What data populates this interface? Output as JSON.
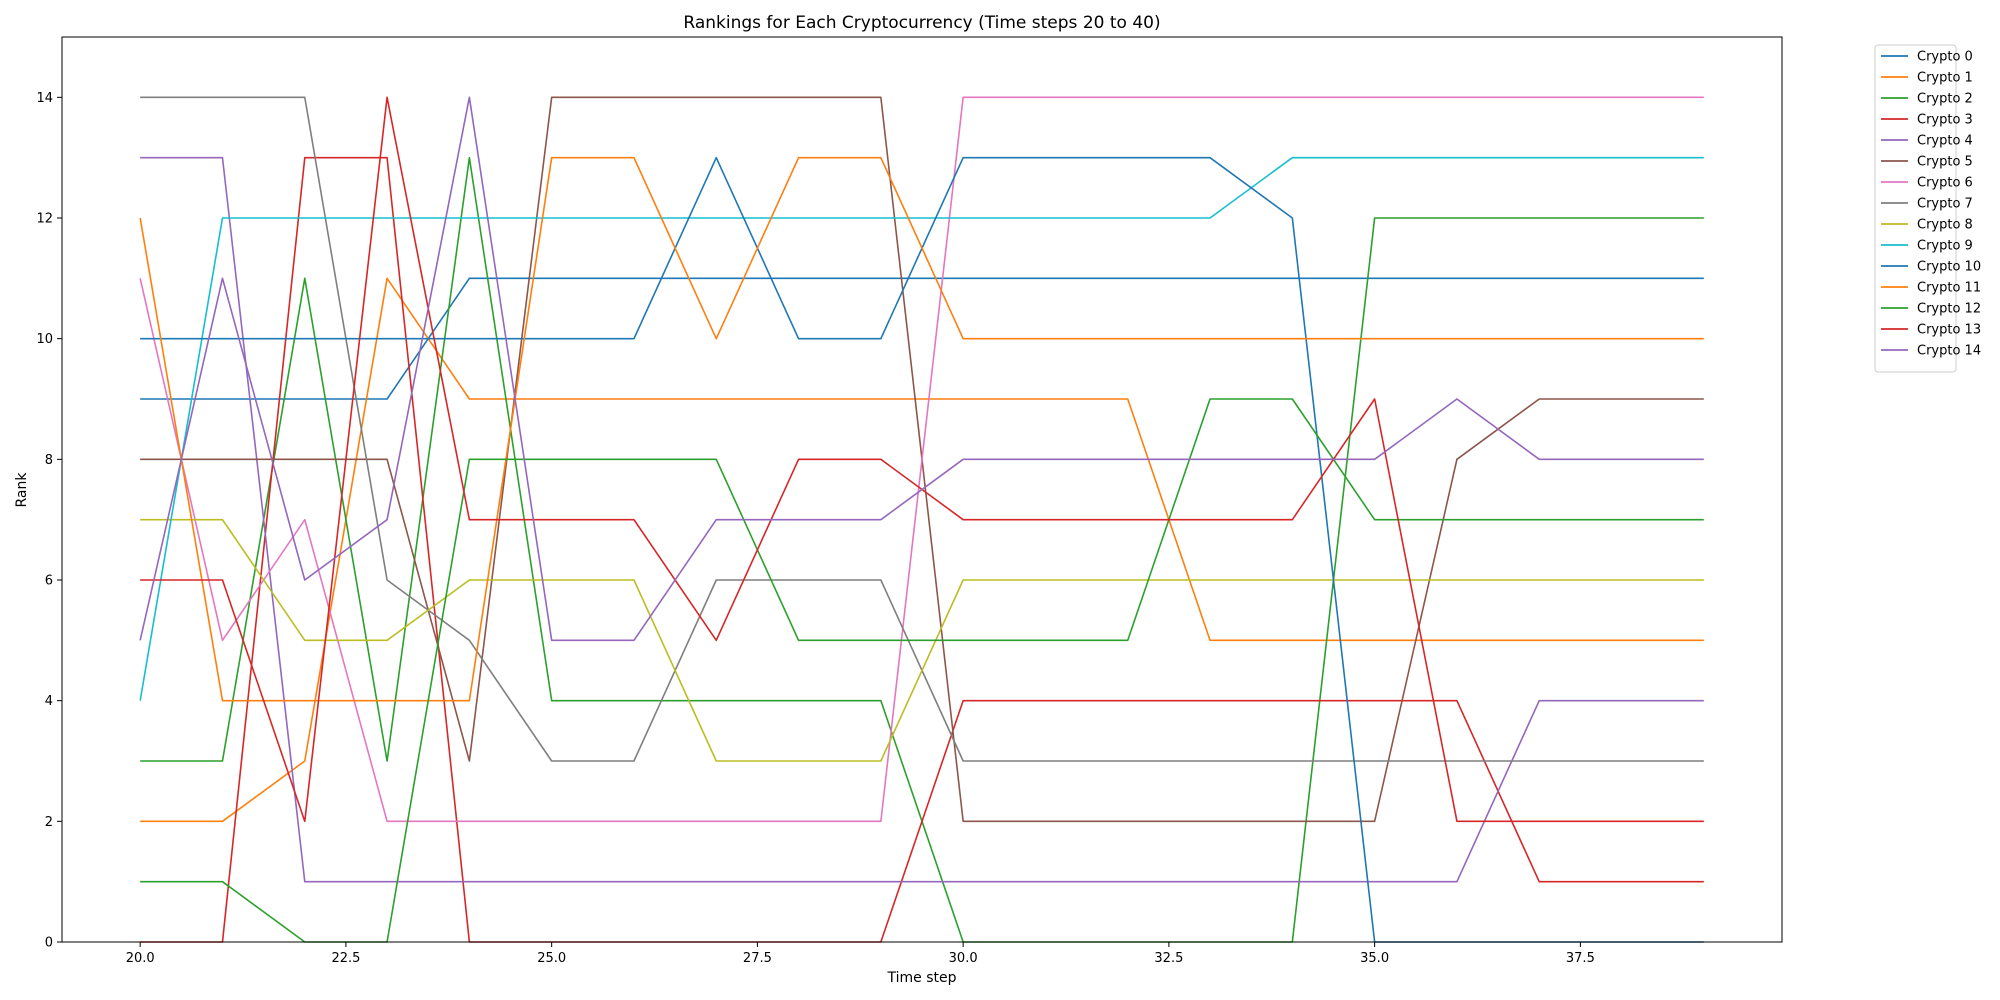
{
  "chart_data": {
    "type": "line",
    "title": "Rankings for Each Cryptocurrency (Time steps 20 to 40)",
    "xlabel": "Time step",
    "ylabel": "Rank",
    "xlim": [
      19.05,
      39.95
    ],
    "ylim": [
      0,
      15
    ],
    "xticks": [
      "20.0",
      "22.5",
      "25.0",
      "27.5",
      "30.0",
      "32.5",
      "35.0",
      "37.5"
    ],
    "yticks": [
      "0",
      "2",
      "4",
      "6",
      "8",
      "10",
      "12",
      "14"
    ],
    "grid": false,
    "legend_position": "outside-right-top",
    "x": [
      20,
      21,
      22,
      23,
      24,
      25,
      26,
      27,
      28,
      29,
      30,
      31,
      32,
      33,
      34,
      35,
      36,
      37,
      38,
      39
    ],
    "series": [
      {
        "name": "Crypto 0",
        "color": "#1f77b4",
        "values": [
          9,
          9,
          9,
          9,
          11,
          11,
          11,
          11,
          11,
          11,
          11,
          11,
          11,
          11,
          11,
          11,
          11,
          11,
          11,
          11
        ]
      },
      {
        "name": "Crypto 1",
        "color": "#ff7f0e",
        "values": [
          2,
          2,
          3,
          11,
          9,
          9,
          9,
          9,
          9,
          9,
          9,
          9,
          9,
          5,
          5,
          5,
          5,
          5,
          5,
          5
        ]
      },
      {
        "name": "Crypto 2",
        "color": "#2ca02c",
        "values": [
          3,
          3,
          11,
          3,
          13,
          4,
          4,
          4,
          4,
          4,
          0,
          0,
          0,
          0,
          0,
          12,
          12,
          12,
          12,
          12
        ]
      },
      {
        "name": "Crypto 3",
        "color": "#d62728",
        "values": [
          0,
          0,
          13,
          13,
          0,
          0,
          0,
          0,
          0,
          0,
          4,
          4,
          4,
          4,
          4,
          4,
          4,
          1,
          1,
          1
        ]
      },
      {
        "name": "Crypto 4",
        "color": "#9467bd",
        "values": [
          13,
          13,
          1,
          1,
          1,
          1,
          1,
          1,
          1,
          1,
          1,
          1,
          1,
          1,
          1,
          1,
          1,
          4,
          4,
          4
        ]
      },
      {
        "name": "Crypto 5",
        "color": "#8c564b",
        "values": [
          8,
          8,
          8,
          8,
          3,
          14,
          14,
          14,
          14,
          14,
          2,
          2,
          2,
          2,
          2,
          2,
          8,
          9,
          9,
          9
        ]
      },
      {
        "name": "Crypto 6",
        "color": "#e377c2",
        "values": [
          11,
          5,
          7,
          2,
          2,
          2,
          2,
          2,
          2,
          2,
          14,
          14,
          14,
          14,
          14,
          14,
          14,
          14,
          14,
          14
        ]
      },
      {
        "name": "Crypto 7",
        "color": "#7f7f7f",
        "values": [
          14,
          14,
          14,
          6,
          5,
          3,
          3,
          6,
          6,
          6,
          3,
          3,
          3,
          3,
          3,
          3,
          3,
          3,
          3,
          3
        ]
      },
      {
        "name": "Crypto 8",
        "color": "#bcbd22",
        "values": [
          7,
          7,
          5,
          5,
          6,
          6,
          6,
          3,
          3,
          3,
          6,
          6,
          6,
          6,
          6,
          6,
          6,
          6,
          6,
          6
        ]
      },
      {
        "name": "Crypto 9",
        "color": "#17becf",
        "values": [
          4,
          12,
          12,
          12,
          12,
          12,
          12,
          12,
          12,
          12,
          12,
          12,
          12,
          12,
          13,
          13,
          13,
          13,
          13,
          13
        ]
      },
      {
        "name": "Crypto 10",
        "color": "#1f77b4",
        "values": [
          10,
          10,
          10,
          10,
          10,
          10,
          10,
          13,
          10,
          10,
          13,
          13,
          13,
          13,
          12,
          0,
          0,
          0,
          0,
          0
        ]
      },
      {
        "name": "Crypto 11",
        "color": "#ff7f0e",
        "values": [
          12,
          4,
          4,
          4,
          4,
          13,
          13,
          10,
          13,
          13,
          10,
          10,
          10,
          10,
          10,
          10,
          10,
          10,
          10,
          10
        ]
      },
      {
        "name": "Crypto 12",
        "color": "#2ca02c",
        "values": [
          1,
          1,
          0,
          0,
          8,
          8,
          8,
          8,
          5,
          5,
          5,
          5,
          5,
          9,
          9,
          7,
          7,
          7,
          7,
          7
        ]
      },
      {
        "name": "Crypto 13",
        "color": "#d62728",
        "values": [
          6,
          6,
          2,
          14,
          7,
          7,
          7,
          5,
          8,
          8,
          7,
          7,
          7,
          7,
          7,
          9,
          2,
          2,
          2,
          2
        ]
      },
      {
        "name": "Crypto 14",
        "color": "#9467bd",
        "values": [
          5,
          11,
          6,
          7,
          14,
          5,
          5,
          7,
          7,
          7,
          8,
          8,
          8,
          8,
          8,
          8,
          9,
          8,
          8,
          8
        ]
      }
    ]
  }
}
